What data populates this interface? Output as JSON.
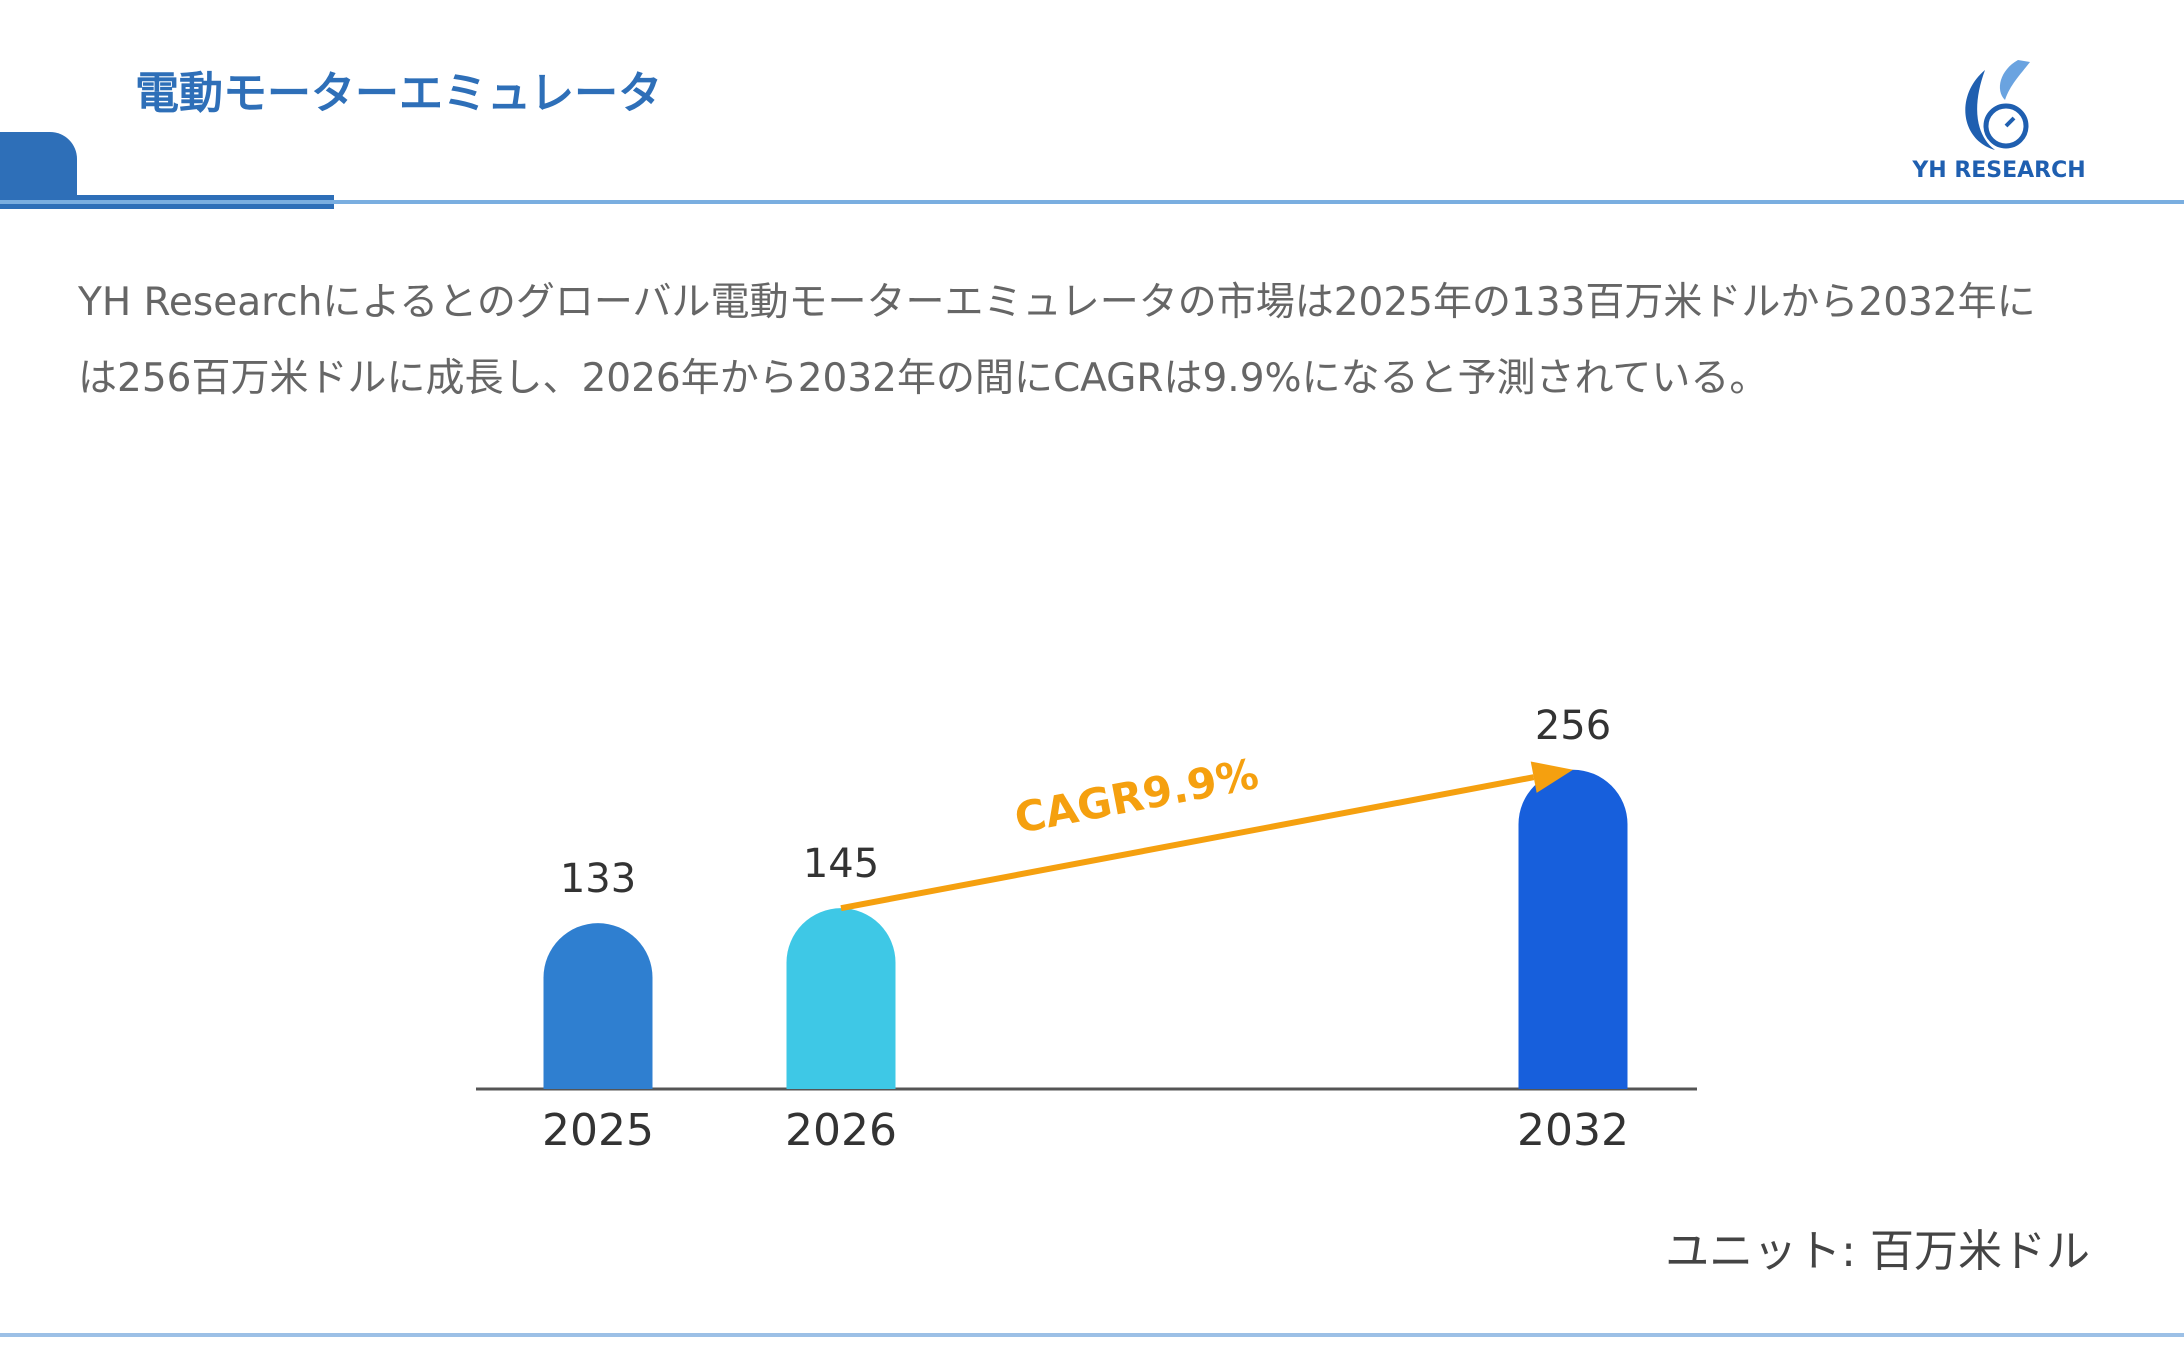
{
  "header": {
    "title": "電動モーターエミュレータ",
    "logo": "YH RESEARCH"
  },
  "description": "YH Researchによるとのグローバル電動モーターエミュレータの市場は2025年の133百万米ドルから2032年には256百万米ドルに成長し、2026年から2032年の間にCAGRは9.9%になると予測されている。",
  "chart_data": {
    "type": "bar",
    "categories": [
      "2025",
      "2026",
      "2032"
    ],
    "values": [
      133,
      145,
      256
    ],
    "colors": [
      "#2f7fd0",
      "#3ec8e6",
      "#175fdc"
    ],
    "annotation": "CAGR9.9%",
    "annotation_color": "#f5a00f",
    "unit": "ユニット: 百万米ドル"
  }
}
